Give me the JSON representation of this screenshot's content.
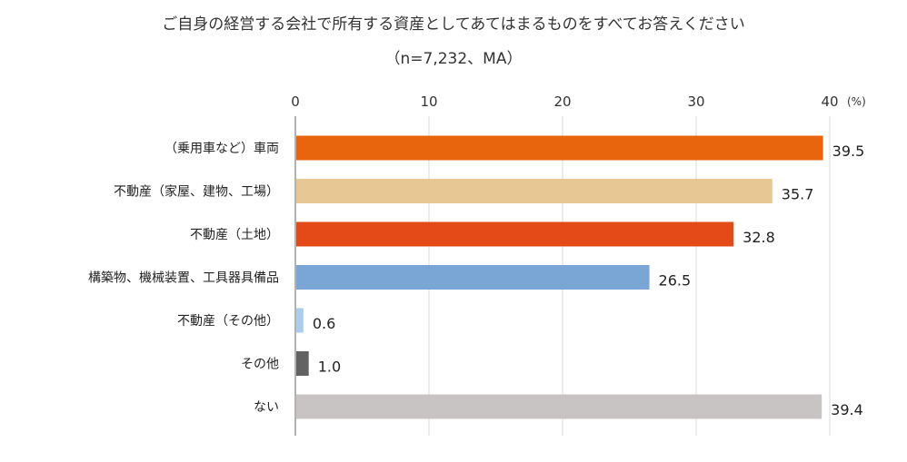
{
  "chart_data": {
    "type": "bar",
    "orientation": "horizontal",
    "title": "ご自身の経営する会社で所有する資産としてあてはまるものをすべてお答えください",
    "subtitle": "（n=7,232、MA）",
    "unit_label": "(%)",
    "xlim": [
      0,
      40
    ],
    "ticks": [
      0,
      10,
      20,
      30,
      40
    ],
    "categories": [
      "（乗用車など）車両",
      "不動産（家屋、建物、工場）",
      "不動産（土地）",
      "構築物、機械装置、工具器具備品",
      "不動産（その他）",
      "その他",
      "ない"
    ],
    "values": [
      39.5,
      35.7,
      32.8,
      26.5,
      0.6,
      1.0,
      39.4
    ],
    "value_labels": [
      "39.5",
      "35.7",
      "32.8",
      "26.5",
      "0.6",
      "1.0",
      "39.4"
    ],
    "colors": [
      "#e8650e",
      "#e7c793",
      "#e34a18",
      "#7aa6d6",
      "#a9cdea",
      "#626262",
      "#c8c4c4"
    ],
    "grid": true,
    "legend": "none"
  }
}
